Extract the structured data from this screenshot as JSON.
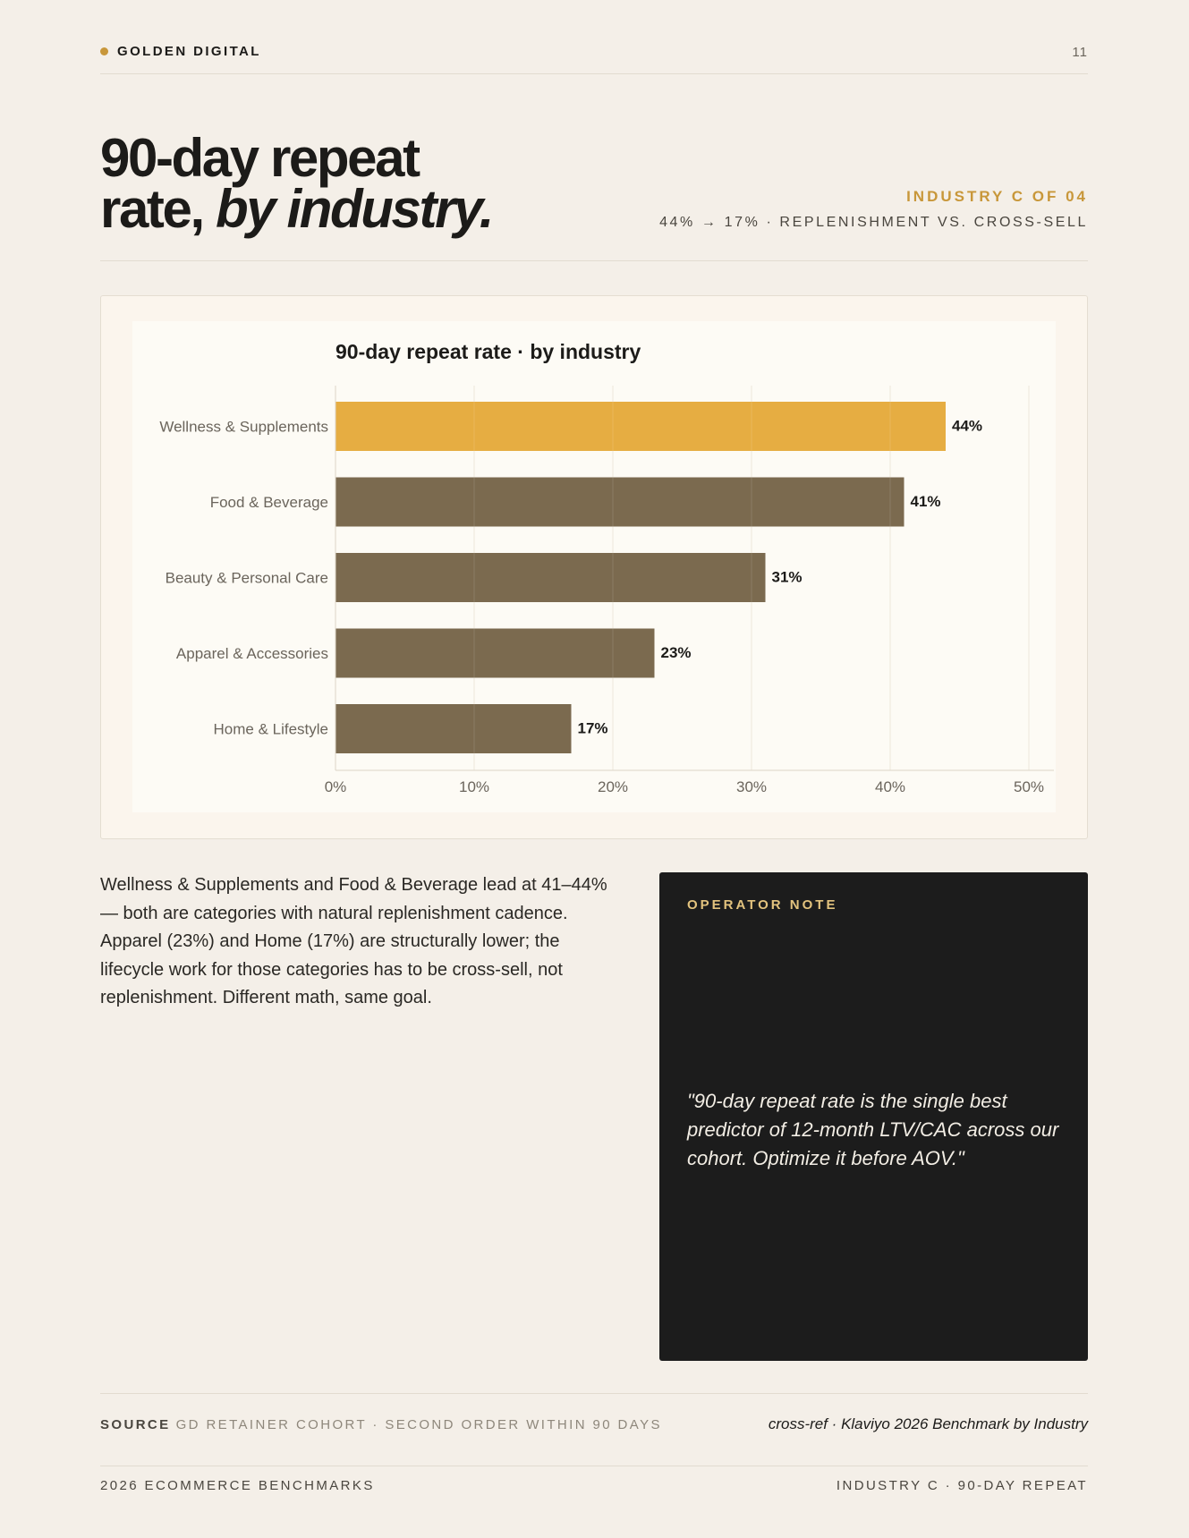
{
  "header": {
    "brand": "GOLDEN DIGITAL",
    "page_number": "11"
  },
  "hero": {
    "title_line1": "90-day repeat",
    "title_line2_plain": "rate, ",
    "title_line2_italic": "by industry.",
    "kicker": "INDUSTRY C OF 04",
    "subkicker": "44% → 17% · REPLENISHMENT VS. CROSS-SELL"
  },
  "colors": {
    "accent": "#c8973a",
    "highlight_bar": "#e6ad42",
    "standard_bar": "#7b6a4f",
    "ink": "#1c1b19",
    "paper": "#f4efe8",
    "note_label": "#e3c37e"
  },
  "chart_data": {
    "type": "bar",
    "orientation": "horizontal",
    "title": "90-day repeat rate · by industry",
    "categories": [
      "Wellness & Supplements",
      "Food & Beverage",
      "Beauty & Personal Care",
      "Apparel & Accessories",
      "Home & Lifestyle"
    ],
    "values": [
      44,
      41,
      31,
      23,
      17
    ],
    "value_labels": [
      "44%",
      "41%",
      "31%",
      "23%",
      "17%"
    ],
    "highlighted": [
      "Wellness & Supplements"
    ],
    "xlim": [
      0,
      50
    ],
    "xticks": [
      0,
      10,
      20,
      30,
      40,
      50
    ],
    "xtick_labels": [
      "0%",
      "10%",
      "20%",
      "30%",
      "40%",
      "50%"
    ],
    "xlabel": "",
    "ylabel": "",
    "grid": "vertical"
  },
  "body": {
    "paragraph": "Wellness & Supplements and Food & Beverage lead at 41–44% — both are categories with natural replenishment cadence. Apparel (23%) and Home (17%) are structurally lower; the lifecycle work for those categories has to be cross-sell, not replenishment. Different math, same goal."
  },
  "note": {
    "label": "OPERATOR NOTE",
    "quote": "\"90-day repeat rate is the single best predictor of 12-month LTV/CAC across our cohort. Optimize it before AOV.\""
  },
  "source": {
    "key": "SOURCE",
    "text": "GD RETAINER COHORT · SECOND ORDER WITHIN 90 DAYS",
    "cross_ref": "cross-ref · Klaviyo 2026 Benchmark by Industry"
  },
  "footer": {
    "left": "2026 ECOMMERCE BENCHMARKS",
    "right": "INDUSTRY C · 90-DAY REPEAT"
  }
}
